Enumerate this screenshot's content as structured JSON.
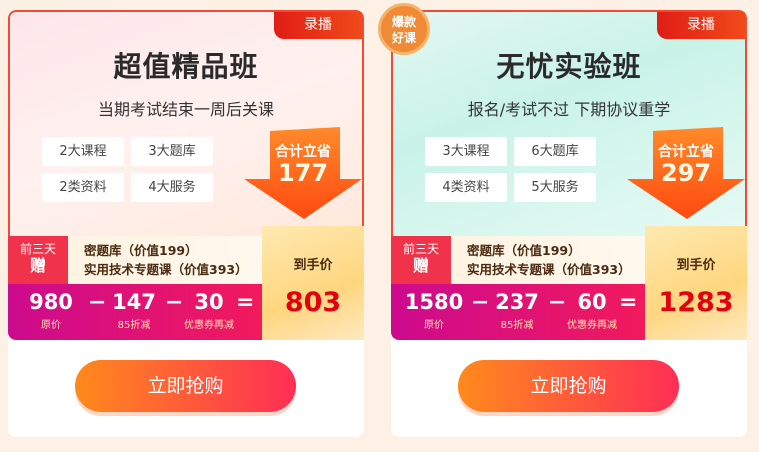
{
  "cards": [
    {
      "tag": "录播",
      "title": "超值精品班",
      "subtitle": "当期考试结束一周后关课",
      "features": [
        "2大课程",
        "3大题库",
        "2类资料",
        "4大服务"
      ],
      "save_label": "合计立省",
      "save_amount": "177",
      "gift_label_top": "前三天",
      "gift_label_bottom": "赠",
      "gifts": [
        "密题库（价值199）",
        "实用技术专题课（价值393）"
      ],
      "original": "980",
      "original_label": "原价",
      "discount": "147",
      "discount_label": "85折减",
      "coupon": "30",
      "coupon_label": "优惠券再减",
      "minus": "−",
      "equals": "=",
      "final_label": "到手价",
      "final_price": "803",
      "buy": "立即抢购"
    },
    {
      "tag": "录播",
      "title": "无忧实验班",
      "subtitle": "报名/考试不过 下期协议重学",
      "features": [
        "3大课程",
        "6大题库",
        "4类资料",
        "5大服务"
      ],
      "save_label": "合计立省",
      "save_amount": "297",
      "gift_label_top": "前三天",
      "gift_label_bottom": "赠",
      "gifts": [
        "密题库（价值199）",
        "实用技术专题课（价值393）"
      ],
      "original": "1580",
      "original_label": "原价",
      "discount": "237",
      "discount_label": "85折减",
      "coupon": "60",
      "coupon_label": "优惠券再减",
      "minus": "−",
      "equals": "=",
      "final_label": "到手价",
      "final_price": "1283",
      "buy": "立即抢购"
    }
  ],
  "hot_badge": {
    "line1": "爆款",
    "line2": "好课"
  },
  "colors": {
    "accent": "#f24b35",
    "price": "#e3000f"
  }
}
